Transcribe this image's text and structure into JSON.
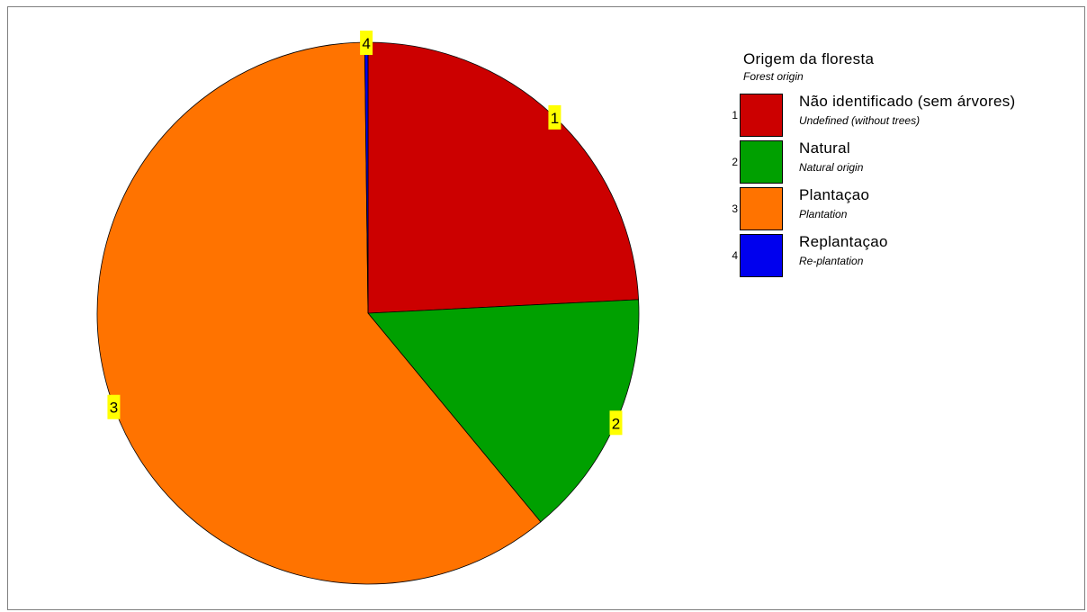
{
  "chart_data": {
    "type": "pie",
    "title": "Origem da floresta",
    "subtitle": "Forest origin",
    "slices": [
      {
        "id": "1",
        "label": "Não identificado (sem árvores)",
        "sublabel": "Undefined (without trees)",
        "value": 24.2,
        "color": "#cc0000"
      },
      {
        "id": "2",
        "label": "Natural",
        "sublabel": "Natural origin",
        "value": 14.8,
        "color": "#00a000"
      },
      {
        "id": "3",
        "label": "Plantaçao",
        "sublabel": "Plantation",
        "value": 60.8,
        "color": "#ff7300"
      },
      {
        "id": "4",
        "label": "Replantaçao",
        "sublabel": "Re-plantation",
        "value": 0.2,
        "color": "#0000ee"
      }
    ],
    "legend_position": "right",
    "label_background": "#ffff00"
  }
}
